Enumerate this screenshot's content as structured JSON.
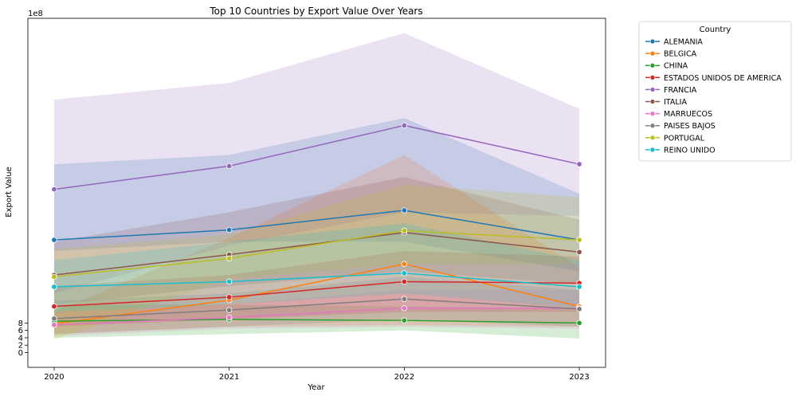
{
  "chart_data": {
    "type": "line",
    "title": "Top 10 Countries by Export Value Over Years",
    "xlabel": "Year",
    "ylabel": "Export Value",
    "y_offset_text": "1e8",
    "y_scale": 100000000,
    "x": [
      2020,
      2021,
      2022,
      2023
    ],
    "xlim": [
      2019.85,
      2023.15
    ],
    "ylim": [
      -4,
      90.5
    ],
    "y_ticks": [
      0,
      2,
      4,
      6,
      8
    ],
    "grid": false,
    "legend_title": "Country",
    "legend_position": "outside-right",
    "markers": true,
    "confidence_bands": true,
    "series": [
      {
        "name": "ALEMANIA",
        "color": "#1f77b4",
        "values": [
          30.5,
          33.2,
          38.5,
          30.5
        ],
        "lower": [
          27.5,
          30.0,
          30.0,
          22.0
        ],
        "upper": [
          51.0,
          53.5,
          63.5,
          43.0
        ]
      },
      {
        "name": "BELGICA",
        "color": "#ff7f0e",
        "values": [
          7.8,
          14.2,
          24.0,
          12.5
        ],
        "lower": [
          5.0,
          7.0,
          7.5,
          7.0
        ],
        "upper": [
          11.0,
          31.0,
          53.5,
          23.0
        ]
      },
      {
        "name": "CHINA",
        "color": "#2ca02c",
        "values": [
          8.5,
          9.0,
          8.7,
          8.0
        ],
        "lower": [
          4.0,
          5.0,
          6.0,
          3.8
        ],
        "upper": [
          13.0,
          13.0,
          12.5,
          12.0
        ]
      },
      {
        "name": "ESTADOS UNIDOS DE AMERICA",
        "color": "#d62728",
        "values": [
          12.5,
          15.0,
          19.2,
          18.8
        ],
        "lower": [
          7.0,
          9.0,
          11.0,
          11.0
        ],
        "upper": [
          18.0,
          21.0,
          27.5,
          26.0
        ]
      },
      {
        "name": "FRANCIA",
        "color": "#9467bd",
        "values": [
          44.2,
          50.5,
          61.5,
          51.0
        ],
        "lower": [
          16.0,
          29.0,
          38.0,
          37.0
        ],
        "upper": [
          68.5,
          73.0,
          86.5,
          66.0
        ]
      },
      {
        "name": "ITALIA",
        "color": "#8c564b",
        "values": [
          21.0,
          26.5,
          32.5,
          27.2
        ],
        "lower": [
          13.0,
          18.0,
          22.0,
          18.5
        ],
        "upper": [
          30.0,
          38.0,
          47.5,
          36.0
        ]
      },
      {
        "name": "MARRUECOS",
        "color": "#e377c2",
        "values": [
          7.5,
          9.5,
          12.0,
          12.0
        ],
        "lower": [
          4.5,
          6.5,
          7.0,
          6.5
        ],
        "upper": [
          11.0,
          13.0,
          17.0,
          17.0
        ]
      },
      {
        "name": "PAISES BAJOS",
        "color": "#7f7f7f",
        "values": [
          9.2,
          11.5,
          14.5,
          11.8
        ],
        "lower": [
          5.0,
          7.0,
          9.0,
          7.0
        ],
        "upper": [
          14.0,
          16.0,
          20.5,
          17.0
        ]
      },
      {
        "name": "PORTUGAL",
        "color": "#bcbd22",
        "values": [
          20.5,
          25.5,
          33.0,
          30.5
        ],
        "lower": [
          3.5,
          20.0,
          24.0,
          24.0
        ],
        "upper": [
          28.0,
          32.0,
          45.5,
          42.0
        ]
      },
      {
        "name": "REINO UNIDO",
        "color": "#17becf",
        "values": [
          17.8,
          19.2,
          21.5,
          17.8
        ],
        "lower": [
          11.0,
          13.0,
          16.0,
          12.0
        ],
        "upper": [
          25.0,
          30.0,
          35.0,
          25.0
        ]
      }
    ]
  }
}
